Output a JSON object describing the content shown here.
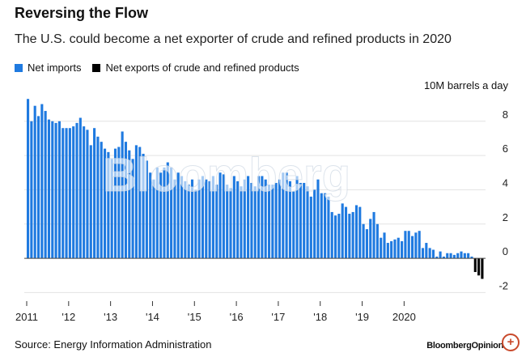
{
  "header": {
    "title": "Reversing the Flow",
    "subtitle": "The U.S. could become a net exporter of crude and refined products in 2020"
  },
  "legend": {
    "items": [
      {
        "label": "Net imports",
        "color": "#1f7ae0"
      },
      {
        "label": "Net exports of crude and refined products",
        "color": "#000000"
      }
    ]
  },
  "unit_label": "10M barrels a day",
  "watermark": "Bloomberg",
  "footer": {
    "source": "Source: Energy Information Administration",
    "brand": "BloombergOpinion",
    "zoom_icon": "zoom-in-icon"
  },
  "chart_data": {
    "type": "bar",
    "ylim": [
      -2.5,
      9.5
    ],
    "ytick_values": [
      -2,
      0,
      2,
      4,
      6,
      8
    ],
    "yticks": [
      "-2",
      "0",
      "2",
      "4",
      "6",
      "8"
    ],
    "xticks": [
      "2011",
      "'12",
      "'13",
      "'14",
      "'15",
      "'16",
      "'17",
      "'18",
      "'19",
      "2020"
    ],
    "grid": true,
    "series": [
      {
        "name": "Net imports",
        "color": "#1f7ae0"
      },
      {
        "name": "Net exports of crude and refined products",
        "color": "#000000"
      }
    ],
    "x_start": "2011-01",
    "values": [
      9.3,
      8.0,
      8.9,
      8.3,
      9.0,
      8.6,
      8.1,
      8.0,
      7.9,
      8.0,
      7.6,
      7.6,
      7.6,
      7.7,
      7.9,
      8.2,
      7.7,
      7.5,
      6.6,
      7.6,
      7.1,
      6.8,
      6.4,
      6.2,
      5.8,
      6.4,
      6.5,
      7.4,
      6.8,
      6.3,
      5.8,
      6.6,
      6.5,
      6.1,
      5.7,
      5.0,
      4.6,
      5.3,
      5.0,
      5.3,
      5.6,
      5.3,
      4.6,
      5.0,
      4.8,
      4.5,
      4.3,
      4.6,
      4.0,
      4.6,
      4.8,
      4.6,
      4.5,
      4.8,
      4.3,
      5.0,
      4.9,
      4.3,
      4.1,
      4.8,
      4.5,
      4.2,
      4.6,
      4.8,
      4.4,
      4.2,
      4.8,
      4.8,
      4.6,
      4.3,
      4.3,
      4.4,
      4.6,
      5.0,
      5.0,
      4.5,
      3.9,
      4.8,
      4.4,
      4.4,
      4.2,
      3.6,
      4.0,
      4.6,
      3.8,
      3.8,
      3.6,
      2.7,
      2.5,
      2.6,
      3.2,
      3.0,
      2.6,
      2.7,
      3.1,
      3.0,
      2.0,
      1.7,
      2.3,
      2.7,
      2.0,
      1.2,
      1.5,
      0.9,
      1.0,
      1.1,
      1.2,
      1.0,
      1.6,
      1.6,
      1.3,
      1.5,
      1.6,
      0.6,
      0.9,
      0.6,
      0.5,
      0.1,
      0.4,
      0.1,
      0.3,
      0.3,
      0.2,
      0.3,
      0.4,
      0.3,
      0.3,
      0.1,
      -0.8,
      -1.0,
      -1.2
    ]
  }
}
